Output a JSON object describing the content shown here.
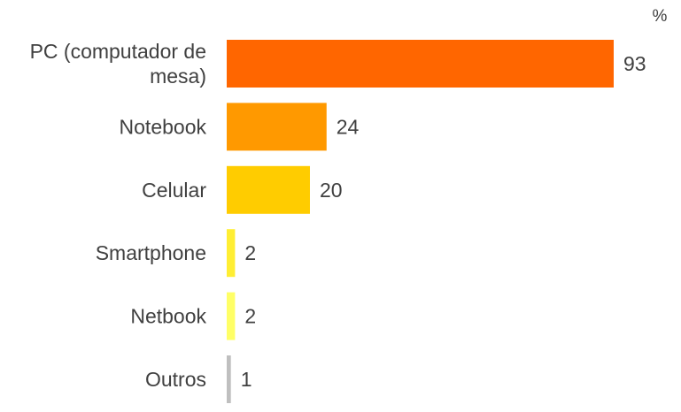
{
  "chart_data": {
    "type": "bar",
    "orientation": "horizontal",
    "unit": "%",
    "categories": [
      "PC (computador de mesa)",
      "Notebook",
      "Celular",
      "Smartphone",
      "Netbook",
      "Outros"
    ],
    "category_lines": [
      [
        "PC (computador de",
        "mesa)"
      ],
      [
        "Notebook"
      ],
      [
        "Celular"
      ],
      [
        "Smartphone"
      ],
      [
        "Netbook"
      ],
      [
        "Outros"
      ]
    ],
    "values": [
      93,
      24,
      20,
      2,
      2,
      1
    ],
    "value_labels": [
      "93",
      "24",
      "20",
      "2",
      "2",
      "1"
    ],
    "colors": [
      "#FF6600",
      "#FF9900",
      "#FFCC00",
      "#FFEE33",
      "#FFFF66",
      "#BFBFBF"
    ],
    "xlim": [
      0,
      93
    ],
    "grid": false,
    "legend": "none"
  }
}
